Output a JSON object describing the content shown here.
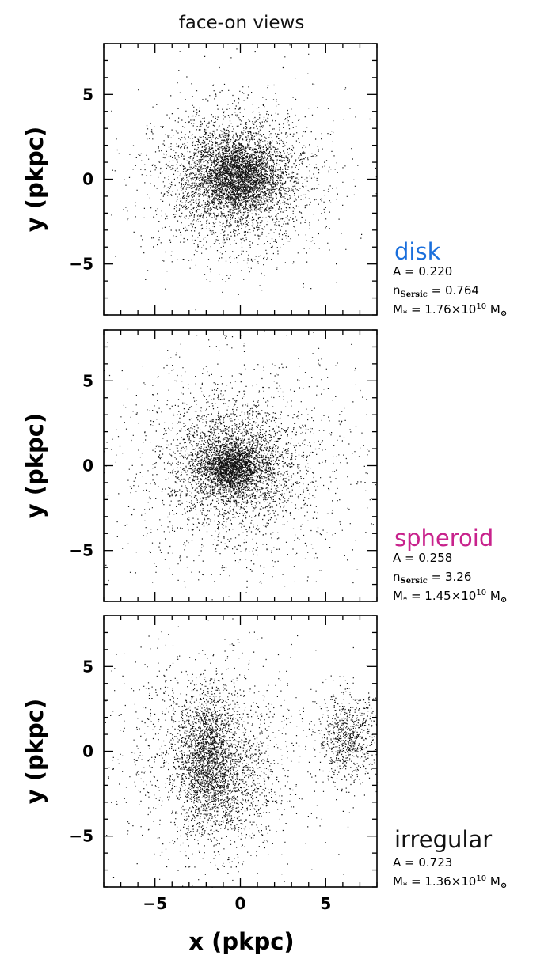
{
  "chart_data": {
    "type": "scatter",
    "title": "face-on views",
    "xlabel": "x (pkpc)",
    "ylabel": "y (pkpc)",
    "xlim": [
      -8,
      8
    ],
    "ylim": [
      -8,
      8
    ],
    "xticks": [
      "−5",
      "0",
      "5"
    ],
    "yticks": [
      "5",
      "0",
      "−5"
    ],
    "panels": [
      {
        "label": "disk",
        "label_color": "#1a6fdc",
        "stats": {
          "A": "A = 0.220",
          "n_prefix": "n",
          "n_sub": "Sersic",
          "n_value": " = 0.764",
          "mass_prefix": "M",
          "mass_sub": "*",
          "mass_value": " = 1.76×10",
          "mass_exp": "10",
          "mass_unit": " M",
          "mass_unit_sub": "⊙"
        },
        "components": [
          {
            "cx": -0.2,
            "cy": 0.2,
            "sx": 1.2,
            "sy": 1.1,
            "n": 2600
          },
          {
            "cx": -0.3,
            "cy": 0.0,
            "sx": 2.3,
            "sy": 2.0,
            "n": 2600
          },
          {
            "cx": 0.0,
            "cy": 0.0,
            "sx": 3.2,
            "sy": 3.2,
            "n": 500
          }
        ]
      },
      {
        "label": "spheroid",
        "label_color": "#c8228c",
        "stats": {
          "A": "A = 0.258",
          "n_prefix": "n",
          "n_sub": "Sersic",
          "n_value": " = 3.26",
          "mass_prefix": "M",
          "mass_sub": "*",
          "mass_value": " = 1.45×10",
          "mass_exp": "10",
          "mass_unit": " M",
          "mass_unit_sub": "⊙"
        },
        "components": [
          {
            "cx": -0.6,
            "cy": -0.1,
            "sx": 0.8,
            "sy": 0.7,
            "n": 1500
          },
          {
            "cx": -0.4,
            "cy": 0.0,
            "sx": 1.8,
            "sy": 1.6,
            "n": 2200
          },
          {
            "cx": -0.2,
            "cy": 0.0,
            "sx": 3.6,
            "sy": 3.4,
            "n": 1600
          }
        ]
      },
      {
        "label": "irregular",
        "label_color": "#111111",
        "stats": {
          "A": "A = 0.723",
          "mass_prefix": "M",
          "mass_sub": "*",
          "mass_value": " = 1.36×10",
          "mass_exp": "10",
          "mass_unit": " M",
          "mass_unit_sub": "⊙"
        },
        "components": [
          {
            "cx": -2.0,
            "cy": -0.3,
            "sx": 0.8,
            "sy": 1.9,
            "n": 1500
          },
          {
            "cx": -1.0,
            "cy": -1.6,
            "sx": 1.5,
            "sy": 2.2,
            "n": 1200
          },
          {
            "cx": -2.2,
            "cy": 0.2,
            "sx": 2.9,
            "sy": 2.9,
            "n": 900
          },
          {
            "cx": 6.3,
            "cy": 0.8,
            "sx": 0.9,
            "sy": 1.3,
            "n": 750
          },
          {
            "cx": 0.0,
            "cy": 0.0,
            "sx": 4.5,
            "sy": 4.0,
            "n": 250
          }
        ]
      }
    ]
  }
}
